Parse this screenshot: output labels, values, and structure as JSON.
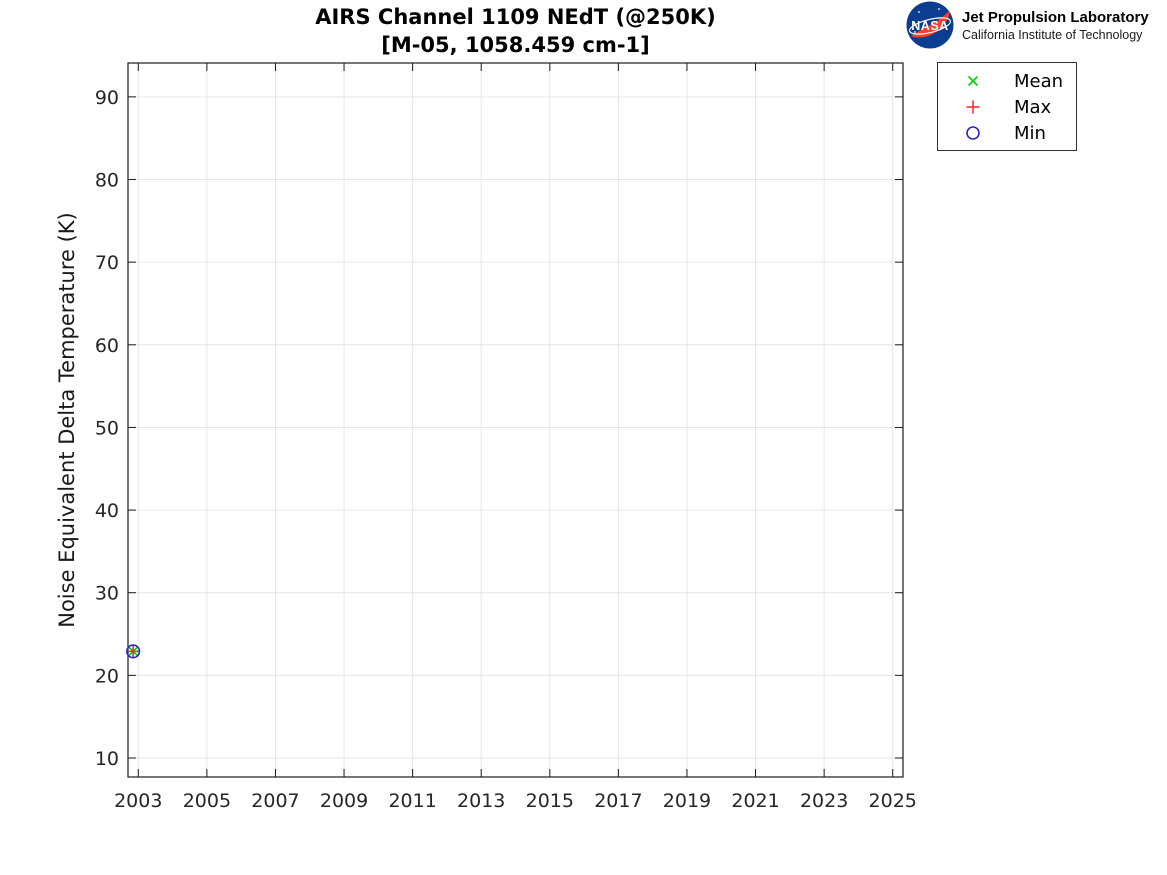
{
  "header": {
    "title_line1": "AIRS Channel 1109 NEdT (@250K)",
    "title_line2": "[M-05, 1058.459 cm-1]"
  },
  "logo": {
    "nasa": "NASA",
    "org": "Jet Propulsion Laboratory",
    "sub": "California Institute of Technology",
    "circle_color": "#0b3d91",
    "swoosh_color": "#fc3d21"
  },
  "chart_data": {
    "type": "scatter",
    "title": "AIRS Channel 1109 NEdT (@250K) [M-05, 1058.459 cm-1]",
    "xlabel": "",
    "ylabel": "Noise Equivalent Delta Temperature (K)",
    "xlim": [
      2002.7,
      2025.3
    ],
    "ylim": [
      7.7,
      94.1
    ],
    "xticks": [
      2003,
      2005,
      2007,
      2009,
      2011,
      2013,
      2015,
      2017,
      2019,
      2021,
      2023,
      2025
    ],
    "yticks": [
      10,
      20,
      30,
      40,
      50,
      60,
      70,
      80,
      90
    ],
    "grid": true,
    "legend": {
      "position": "outside-top-right",
      "entries": [
        "Mean",
        "Max",
        "Min"
      ]
    },
    "series": [
      {
        "name": "Mean",
        "marker": "x",
        "color": "#00d500",
        "points": [
          {
            "x": 2002.85,
            "y": 22.9
          }
        ]
      },
      {
        "name": "Max",
        "marker": "+",
        "color": "#ee3333",
        "points": [
          {
            "x": 2002.85,
            "y": 22.9
          }
        ]
      },
      {
        "name": "Min",
        "marker": "o",
        "color": "#2a2ac0",
        "points": [
          {
            "x": 2002.85,
            "y": 22.9
          }
        ]
      }
    ],
    "colors": {
      "grid": "#e6e6e6",
      "axis": "#1a1a1a",
      "tick_label": "#262626"
    }
  }
}
